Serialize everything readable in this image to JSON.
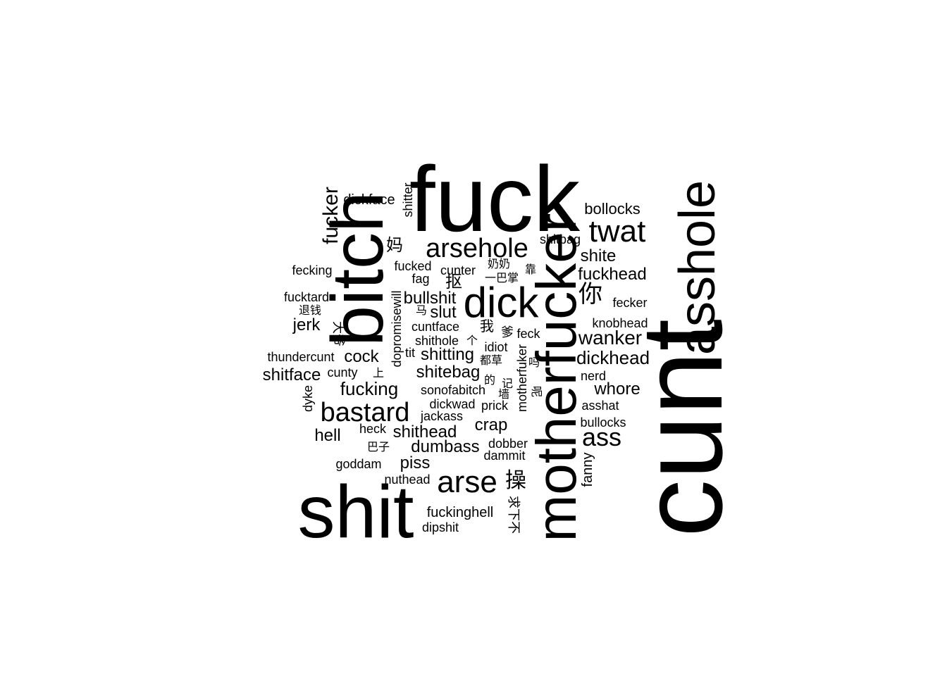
{
  "words": [
    {
      "text": "fuck"
    },
    {
      "text": "cunt"
    },
    {
      "text": "shit"
    },
    {
      "text": "bitch"
    },
    {
      "text": "motherfucker"
    },
    {
      "text": "asshole"
    },
    {
      "text": "dick"
    },
    {
      "text": "arsehole"
    },
    {
      "text": "twat"
    },
    {
      "text": "arse"
    },
    {
      "text": "bastard"
    },
    {
      "text": "ass"
    },
    {
      "text": "fucker"
    },
    {
      "text": "dickface"
    },
    {
      "text": "shitter"
    },
    {
      "text": "bollocks"
    },
    {
      "text": "shitbag"
    },
    {
      "text": "妈"
    },
    {
      "text": "shite"
    },
    {
      "text": "fecking"
    },
    {
      "text": "fucked"
    },
    {
      "text": "cunter"
    },
    {
      "text": "奶奶"
    },
    {
      "text": "靠"
    },
    {
      "text": "fuckhead"
    },
    {
      "text": "fag"
    },
    {
      "text": "抠"
    },
    {
      "text": "一巴掌"
    },
    {
      "text": "你"
    },
    {
      "text": "fucktard"
    },
    {
      "text": "bullshit"
    },
    {
      "text": "fecker"
    },
    {
      "text": "退钱"
    },
    {
      "text": "马"
    },
    {
      "text": "slut"
    },
    {
      "text": "dopromisewill"
    },
    {
      "text": "jerk"
    },
    {
      "text": "大爷"
    },
    {
      "text": "cuntface"
    },
    {
      "text": "我"
    },
    {
      "text": "爹"
    },
    {
      "text": "feck"
    },
    {
      "text": "knobhead"
    },
    {
      "text": "wanker"
    },
    {
      "text": "shithole"
    },
    {
      "text": "个"
    },
    {
      "text": "idiot"
    },
    {
      "text": "thundercunt"
    },
    {
      "text": "tit"
    },
    {
      "text": "cock"
    },
    {
      "text": "shitting"
    },
    {
      "text": "都草"
    },
    {
      "text": "motherfuker"
    },
    {
      "text": "吗"
    },
    {
      "text": "dickhead"
    },
    {
      "text": "shitface"
    },
    {
      "text": "cunty"
    },
    {
      "text": "上"
    },
    {
      "text": "shitebag"
    },
    {
      "text": "的"
    },
    {
      "text": "记"
    },
    {
      "text": "nerd"
    },
    {
      "text": "fucking"
    },
    {
      "text": "呢"
    },
    {
      "text": "dyke"
    },
    {
      "text": "sonofabitch"
    },
    {
      "text": "墙"
    },
    {
      "text": "whore"
    },
    {
      "text": "dickwad"
    },
    {
      "text": "prick"
    },
    {
      "text": "asshat"
    },
    {
      "text": "jackass"
    },
    {
      "text": "bullocks"
    },
    {
      "text": "crap"
    },
    {
      "text": "hell"
    },
    {
      "text": "heck"
    },
    {
      "text": "shithead"
    },
    {
      "text": "fanny"
    },
    {
      "text": "巴子"
    },
    {
      "text": "dumbass"
    },
    {
      "text": "dobber"
    },
    {
      "text": "dammit"
    },
    {
      "text": "goddam"
    },
    {
      "text": "piss"
    },
    {
      "text": "操"
    },
    {
      "text": "nuthead"
    },
    {
      "text": "求下不"
    },
    {
      "text": "fuckinghell"
    },
    {
      "text": "dipshit"
    }
  ]
}
